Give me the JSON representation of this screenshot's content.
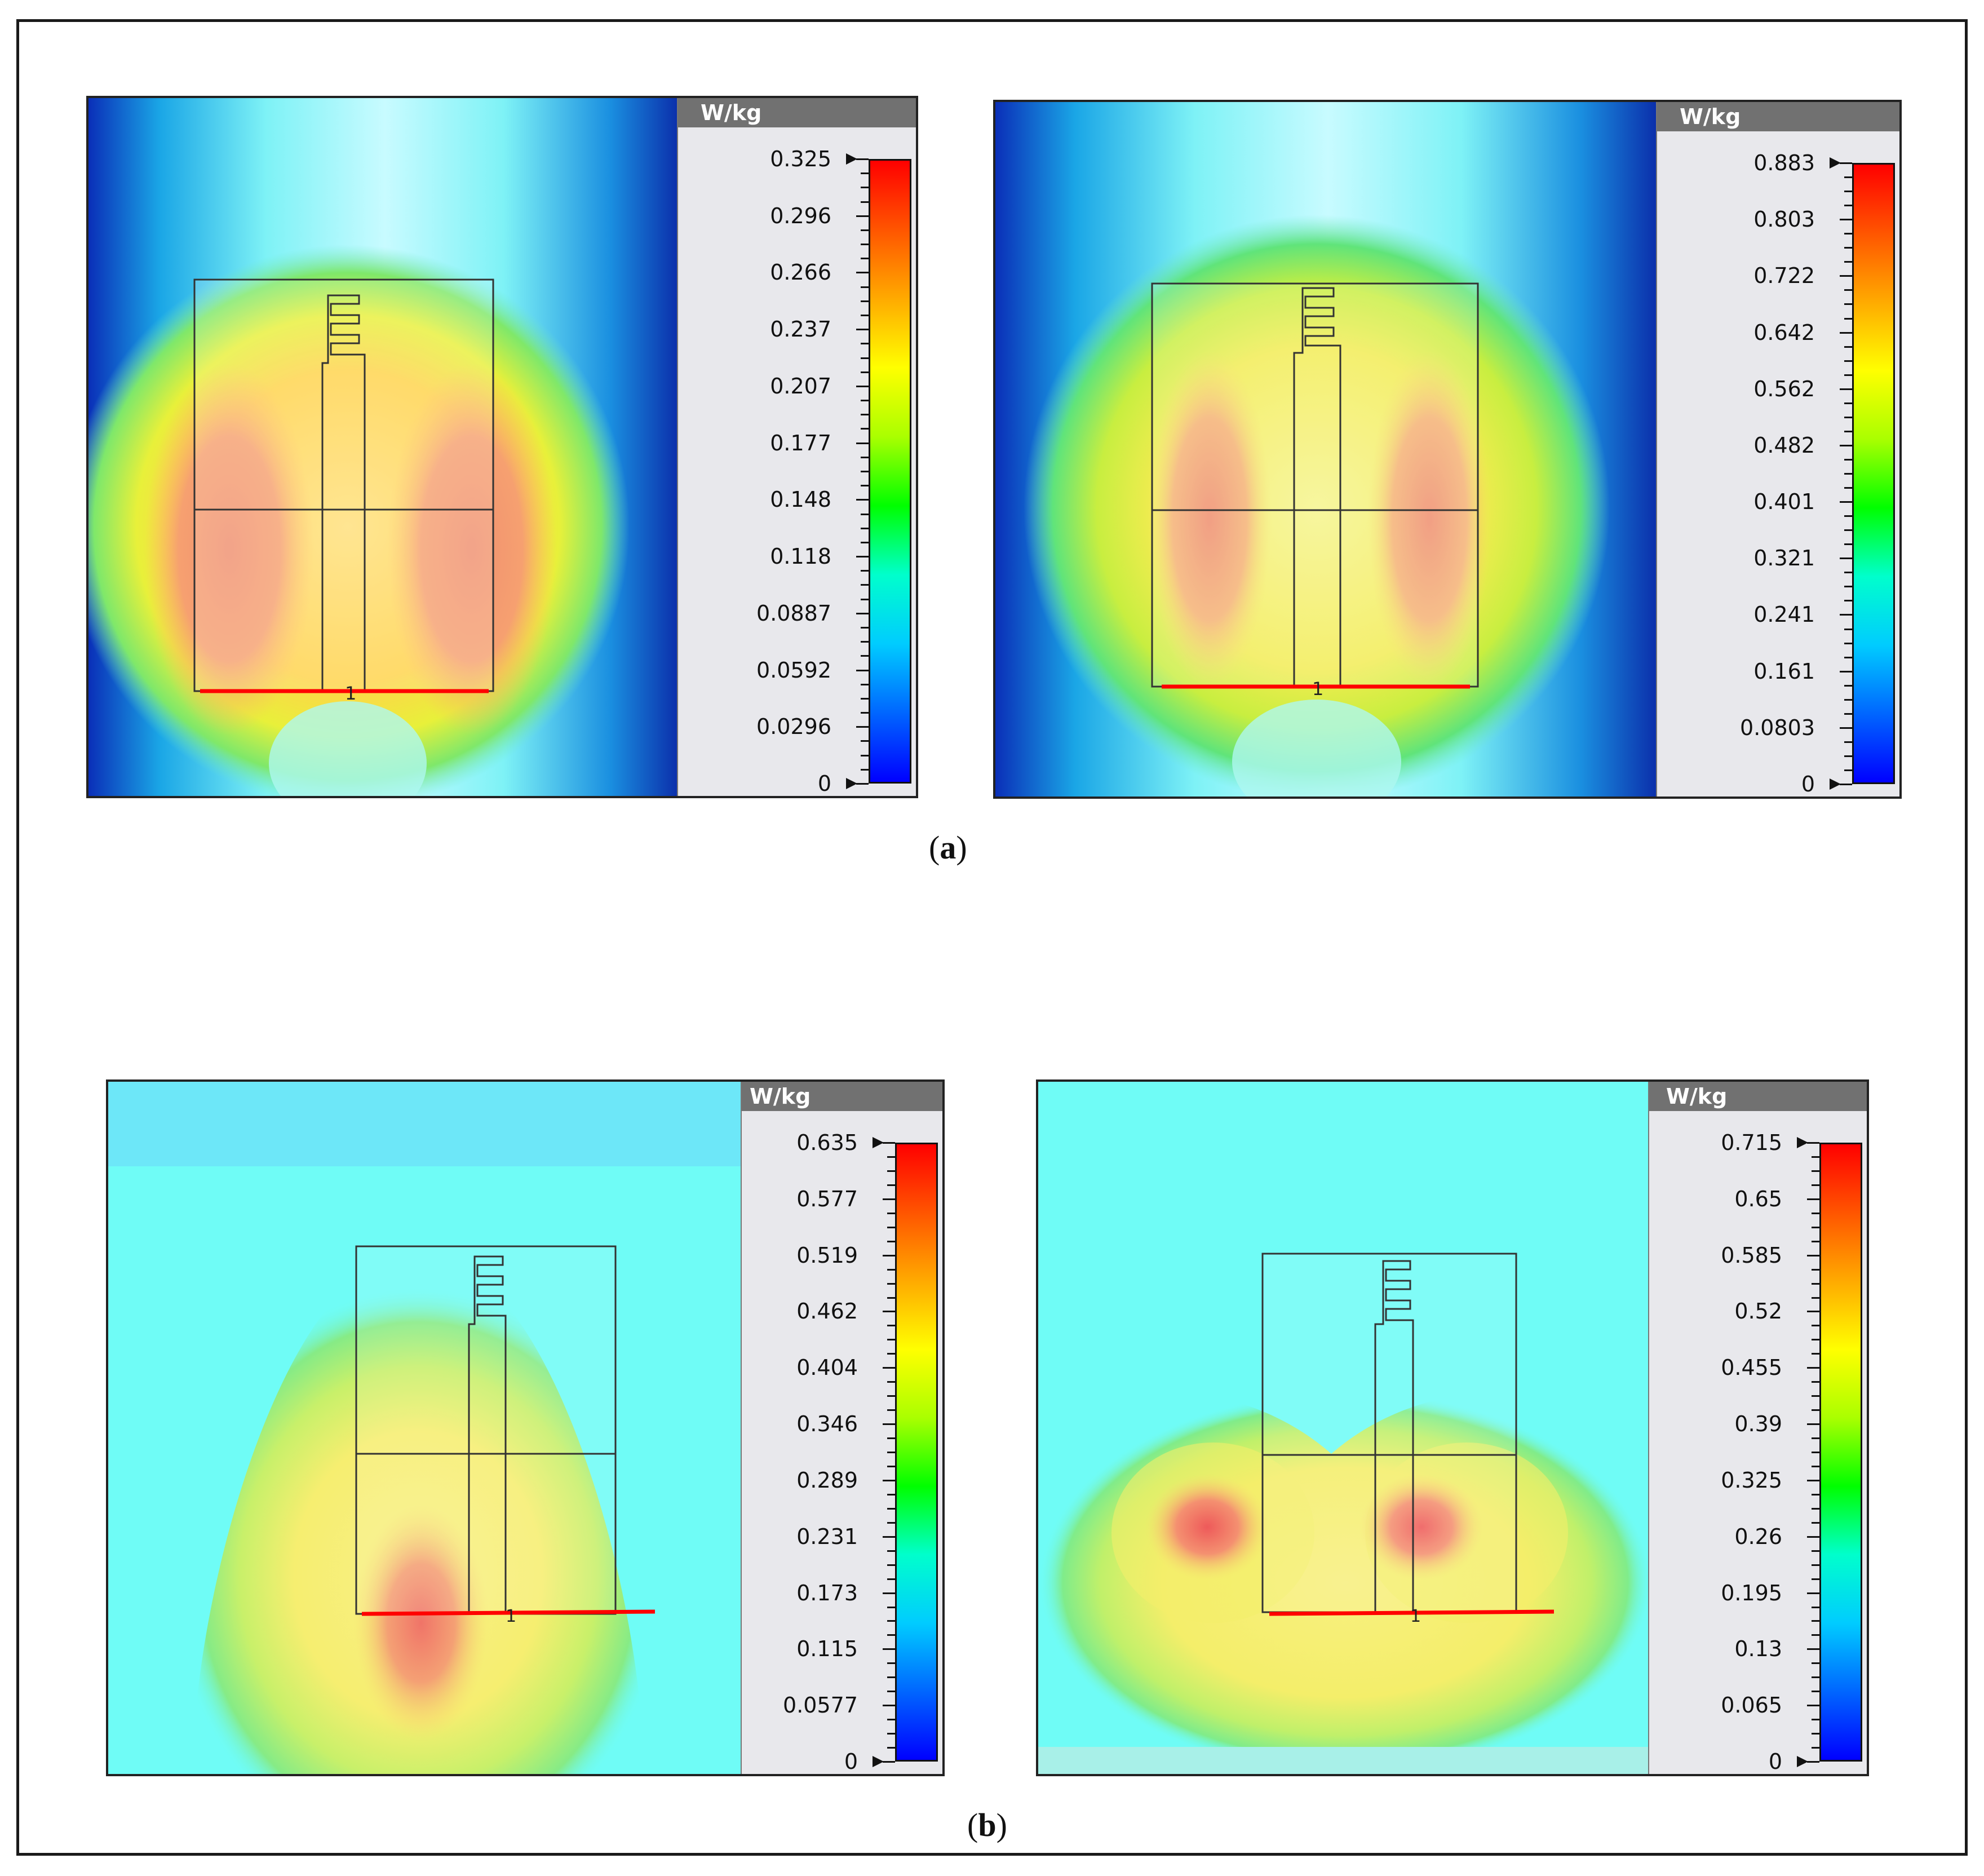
{
  "panels": [
    {
      "id": "a-left",
      "unit": "W/kg",
      "ticks": [
        "0.325",
        "0.296",
        "0.266",
        "0.237",
        "0.207",
        "0.177",
        "0.148",
        "0.118",
        "0.0887",
        "0.0592",
        "0.0296",
        "0"
      ],
      "max_value": 0.325,
      "port_label": "1"
    },
    {
      "id": "a-right",
      "unit": "W/kg",
      "ticks": [
        "0.883",
        "0.803",
        "0.722",
        "0.642",
        "0.562",
        "0.482",
        "0.401",
        "0.321",
        "0.241",
        "0.161",
        "0.0803",
        "0"
      ],
      "max_value": 0.883,
      "port_label": "1"
    },
    {
      "id": "b-left",
      "unit": "W/kg",
      "ticks": [
        "0.635",
        "0.577",
        "0.519",
        "0.462",
        "0.404",
        "0.346",
        "0.289",
        "0.231",
        "0.173",
        "0.115",
        "0.0577",
        "0"
      ],
      "max_value": 0.635,
      "port_label": "1"
    },
    {
      "id": "b-right",
      "unit": "W/kg",
      "ticks": [
        "0.715",
        "0.65",
        "0.585",
        "0.52",
        "0.455",
        "0.39",
        "0.325",
        "0.26",
        "0.195",
        "0.13",
        "0.065",
        "0"
      ],
      "max_value": 0.715,
      "port_label": "1"
    }
  ],
  "captions": {
    "a": {
      "open": "(",
      "letter": "a",
      "close": ")"
    },
    "b": {
      "open": "(",
      "letter": "b",
      "close": ")"
    }
  },
  "colors": {
    "scale": [
      "#0000ff",
      "#0066ff",
      "#00ccff",
      "#00ffcc",
      "#00ff00",
      "#aaff00",
      "#ffff00",
      "#ffaa00",
      "#ff5500",
      "#ff0000"
    ],
    "feed_line": "#ff0000",
    "antenna_outline": "#333333",
    "legend_header": "#717171"
  }
}
